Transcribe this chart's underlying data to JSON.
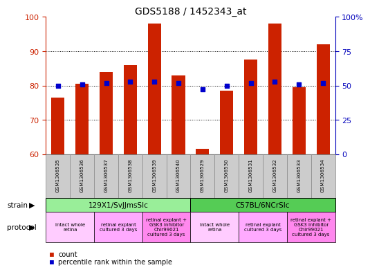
{
  "title": "GDS5188 / 1452343_at",
  "samples": [
    "GSM1306535",
    "GSM1306536",
    "GSM1306537",
    "GSM1306538",
    "GSM1306539",
    "GSM1306540",
    "GSM1306529",
    "GSM1306530",
    "GSM1306531",
    "GSM1306532",
    "GSM1306533",
    "GSM1306534"
  ],
  "count_values": [
    76.5,
    80.5,
    84.0,
    86.0,
    98.0,
    83.0,
    61.5,
    78.5,
    87.5,
    98.0,
    79.5,
    92.0
  ],
  "percentile_values": [
    50,
    51,
    52,
    53,
    53,
    52,
    47,
    50,
    52,
    53,
    51,
    52
  ],
  "ylim_left": [
    60,
    100
  ],
  "ylim_right": [
    0,
    100
  ],
  "yticks_left": [
    60,
    70,
    80,
    90,
    100
  ],
  "yticks_right": [
    0,
    25,
    50,
    75,
    100
  ],
  "ytick_labels_right": [
    "0",
    "25",
    "50",
    "75",
    "100%"
  ],
  "bar_color": "#cc2200",
  "dot_color": "#0000cc",
  "bg_color": "#ffffff",
  "plot_bg": "#ffffff",
  "strain_groups": [
    {
      "label": "129X1/SvJJmsSlc",
      "start": 0,
      "end": 6,
      "color": "#99ee99"
    },
    {
      "label": "C57BL/6NCrSlc",
      "start": 6,
      "end": 12,
      "color": "#55cc55"
    }
  ],
  "protocol_groups": [
    {
      "label": "intact whole\nretina",
      "start": 0,
      "end": 2,
      "color": "#ffccff"
    },
    {
      "label": "retinal explant\ncultured 3 days",
      "start": 2,
      "end": 4,
      "color": "#ffaaff"
    },
    {
      "label": "retinal explant +\nGSK3 inhibitor\nChir99021\ncultured 3 days",
      "start": 4,
      "end": 6,
      "color": "#ff88ee"
    },
    {
      "label": "intact whole\nretina",
      "start": 6,
      "end": 8,
      "color": "#ffccff"
    },
    {
      "label": "retinal explant\ncultured 3 days",
      "start": 8,
      "end": 10,
      "color": "#ffaaff"
    },
    {
      "label": "retinal explant +\nGSK3 inhibitor\nChir99021\ncultured 3 days",
      "start": 10,
      "end": 12,
      "color": "#ff88ee"
    }
  ],
  "left_axis_color": "#cc2200",
  "right_axis_color": "#0000bb",
  "sample_box_color": "#cccccc",
  "sample_box_edge": "#888888"
}
